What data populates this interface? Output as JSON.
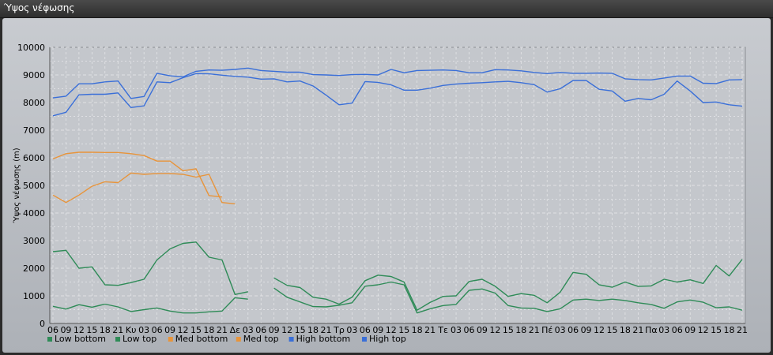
{
  "window": {
    "title": "Ύψος νέφωσης"
  },
  "chart_data": {
    "type": "line",
    "title": "",
    "ylabel": "Ύψος νέφωσης (m)",
    "xlabel": "",
    "ylim": [
      0,
      10000
    ],
    "yticks": [
      0,
      1000,
      2000,
      3000,
      4000,
      5000,
      6000,
      7000,
      8000,
      9000,
      10000
    ],
    "grid": true,
    "legend_position": "bottom-left",
    "categories": [
      "06",
      "09",
      "12",
      "15",
      "18",
      "21",
      "Κυ",
      "03",
      "06",
      "09",
      "12",
      "15",
      "18",
      "21",
      "Δε",
      "03",
      "06",
      "09",
      "12",
      "15",
      "18",
      "21",
      "Τρ",
      "03",
      "06",
      "09",
      "12",
      "15",
      "18",
      "21",
      "Τε",
      "03",
      "06",
      "09",
      "12",
      "15",
      "18",
      "21",
      "Πέ",
      "03",
      "06",
      "09",
      "12",
      "15",
      "18",
      "21",
      "Πα",
      "03",
      "06",
      "09",
      "12",
      "15",
      "18",
      "21"
    ],
    "series": [
      {
        "name": "Low bottom",
        "color": "#2e8b57",
        "values": [
          620,
          520,
          680,
          590,
          700,
          600,
          430,
          500,
          560,
          450,
          380,
          380,
          420,
          450,
          930,
          880,
          null,
          1280,
          950,
          780,
          610,
          600,
          660,
          750,
          1350,
          1400,
          1500,
          1400,
          380,
          530,
          650,
          690,
          1200,
          1250,
          1100,
          650,
          560,
          550,
          430,
          530,
          850,
          880,
          830,
          880,
          830,
          750,
          690,
          550,
          780,
          850,
          770,
          570,
          600,
          480
        ]
      },
      {
        "name": "Low top",
        "color": "#2e8b57",
        "values": [
          2600,
          2650,
          2000,
          2050,
          1400,
          1380,
          1480,
          1600,
          2300,
          2700,
          2900,
          2950,
          2400,
          2300,
          1050,
          1150,
          null,
          1650,
          1380,
          1300,
          950,
          880,
          700,
          950,
          1550,
          1750,
          1700,
          1500,
          480,
          760,
          980,
          1000,
          1520,
          1600,
          1350,
          980,
          1080,
          1020,
          750,
          1130,
          1850,
          1780,
          1400,
          1310,
          1500,
          1340,
          1360,
          1600,
          1500,
          1580,
          1450,
          2100,
          1720,
          2320
        ]
      },
      {
        "name": "Med bottom",
        "color": "#e8943a",
        "values": [
          4650,
          4380,
          4650,
          4970,
          5130,
          5100,
          5450,
          5400,
          5430,
          5430,
          5400,
          5300,
          5400,
          4380,
          4330,
          null,
          null,
          null,
          null,
          null,
          null,
          null,
          null,
          null,
          null,
          null,
          null,
          null,
          null,
          null,
          null,
          null,
          null,
          null,
          null,
          null,
          null,
          null,
          null,
          null,
          null,
          null,
          null,
          null,
          null,
          null,
          null,
          null,
          null,
          null,
          null,
          null,
          null,
          null
        ]
      },
      {
        "name": "Med top",
        "color": "#e8943a",
        "values": [
          5960,
          6150,
          6200,
          6200,
          6190,
          6190,
          6150,
          6080,
          5880,
          5880,
          5530,
          5600,
          4630,
          4580,
          null,
          null,
          null,
          null,
          null,
          null,
          null,
          null,
          null,
          null,
          null,
          null,
          null,
          null,
          null,
          null,
          null,
          null,
          null,
          null,
          null,
          null,
          null,
          null,
          null,
          null,
          null,
          null,
          null,
          null,
          null,
          null,
          null,
          null,
          null,
          null,
          null,
          null,
          null,
          null
        ]
      },
      {
        "name": "High bottom",
        "color": "#3a6fd8",
        "values": [
          7520,
          7650,
          8280,
          8300,
          8300,
          8350,
          7820,
          7880,
          8750,
          8720,
          8900,
          9050,
          9040,
          8990,
          8950,
          8920,
          8850,
          8860,
          8750,
          8780,
          8600,
          8270,
          7920,
          7980,
          8760,
          8730,
          8640,
          8450,
          8450,
          8520,
          8620,
          8670,
          8700,
          8720,
          8750,
          8770,
          8720,
          8650,
          8380,
          8500,
          8800,
          8800,
          8480,
          8420,
          8050,
          8150,
          8100,
          8300,
          8780,
          8420,
          8000,
          8020,
          7920,
          7870
        ]
      },
      {
        "name": "High top",
        "color": "#3a6fd8",
        "values": [
          8170,
          8230,
          8680,
          8680,
          8750,
          8780,
          8150,
          8220,
          9060,
          8970,
          8930,
          9130,
          9180,
          9170,
          9200,
          9250,
          9160,
          9130,
          9100,
          9100,
          9010,
          9000,
          8980,
          9010,
          9020,
          9000,
          9200,
          9080,
          9160,
          9170,
          9180,
          9160,
          9080,
          9080,
          9190,
          9180,
          9150,
          9090,
          9050,
          9090,
          9060,
          9060,
          9070,
          9060,
          8860,
          8830,
          8820,
          8890,
          8960,
          8960,
          8700,
          8690,
          8820,
          8830
        ]
      }
    ]
  }
}
